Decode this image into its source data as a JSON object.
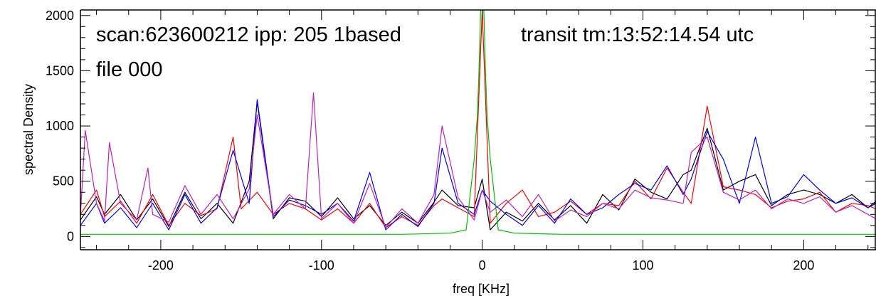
{
  "chart_data": {
    "type": "line",
    "title": "",
    "xlabel": "freq [KHz]",
    "ylabel": "spectral Density",
    "xlim": [
      -250,
      245
    ],
    "ylim": [
      -120,
      2050
    ],
    "xticks": [
      -200,
      -100,
      0,
      100,
      200
    ],
    "yticks": [
      0,
      500,
      1000,
      1500,
      2000
    ],
    "grid": false,
    "annotations": {
      "scan": "scan:623600212 ipp: 205 1based",
      "transit": "transit tm:13:52:14.54 utc",
      "file": "file 000"
    },
    "colors": {
      "black": "#000000",
      "red": "#ff0000",
      "blue": "#0000ff",
      "magenta": "#c020c0",
      "green": "#00c000"
    },
    "series": [
      {
        "color": "black",
        "x": [
          -250,
          -240,
          -235,
          -225,
          -215,
          -205,
          -195,
          -185,
          -175,
          -165,
          -155,
          -145,
          -140,
          -130,
          -120,
          -110,
          -100,
          -90,
          -80,
          -70,
          -60,
          -50,
          -40,
          -30,
          -25,
          -15,
          -5,
          0,
          5,
          15,
          25,
          35,
          45,
          55,
          65,
          75,
          85,
          95,
          105,
          115,
          125,
          130,
          140,
          150,
          160,
          170,
          180,
          190,
          200,
          210,
          220,
          230,
          240,
          245
        ],
        "y": [
          150,
          360,
          200,
          380,
          150,
          340,
          90,
          400,
          160,
          300,
          120,
          500,
          1220,
          160,
          350,
          320,
          180,
          350,
          160,
          280,
          100,
          220,
          120,
          310,
          420,
          280,
          260,
          520,
          60,
          220,
          140,
          300,
          150,
          280,
          120,
          380,
          240,
          520,
          400,
          340,
          560,
          600,
          980,
          420,
          500,
          560,
          280,
          380,
          420,
          380,
          300,
          380,
          260,
          320
        ]
      },
      {
        "color": "red",
        "x": [
          -250,
          -240,
          -235,
          -225,
          -215,
          -205,
          -195,
          -185,
          -175,
          -165,
          -155,
          -150,
          -140,
          -130,
          -120,
          -110,
          -100,
          -90,
          -80,
          -70,
          -60,
          -50,
          -40,
          -30,
          -25,
          -15,
          -5,
          0,
          5,
          15,
          25,
          35,
          45,
          55,
          65,
          75,
          85,
          95,
          105,
          115,
          125,
          130,
          140,
          150,
          160,
          170,
          180,
          190,
          200,
          210,
          220,
          230,
          240,
          245
        ],
        "y": [
          200,
          420,
          180,
          320,
          120,
          380,
          100,
          300,
          190,
          250,
          900,
          250,
          400,
          200,
          300,
          250,
          150,
          250,
          120,
          300,
          80,
          180,
          100,
          280,
          340,
          260,
          180,
          2050,
          120,
          300,
          420,
          180,
          220,
          320,
          200,
          300,
          280,
          500,
          340,
          620,
          400,
          300,
          1180,
          450,
          420,
          380,
          260,
          320,
          340,
          400,
          220,
          300,
          280,
          250
        ]
      },
      {
        "color": "blue",
        "x": [
          -250,
          -240,
          -235,
          -225,
          -215,
          -205,
          -195,
          -185,
          -175,
          -165,
          -155,
          -145,
          -140,
          -130,
          -120,
          -110,
          -100,
          -90,
          -80,
          -70,
          -60,
          -50,
          -40,
          -30,
          -25,
          -15,
          -5,
          0,
          5,
          15,
          25,
          35,
          45,
          55,
          65,
          75,
          85,
          95,
          105,
          115,
          125,
          130,
          140,
          150,
          160,
          170,
          180,
          190,
          200,
          210,
          220,
          230,
          240,
          245
        ],
        "y": [
          100,
          300,
          120,
          260,
          80,
          300,
          60,
          380,
          120,
          260,
          780,
          300,
          1240,
          180,
          330,
          280,
          200,
          300,
          140,
          580,
          60,
          200,
          90,
          300,
          800,
          300,
          200,
          420,
          320,
          200,
          100,
          280,
          120,
          340,
          200,
          260,
          380,
          480,
          420,
          640,
          380,
          520,
          950,
          700,
          300,
          900,
          300,
          360,
          560,
          420,
          300,
          350,
          260,
          300
        ]
      },
      {
        "color": "magenta",
        "x": [
          -250,
          -247,
          -240,
          -235,
          -232,
          -225,
          -215,
          -208,
          -205,
          -195,
          -185,
          -175,
          -165,
          -155,
          -145,
          -140,
          -130,
          -120,
          -110,
          -105,
          -100,
          -90,
          -80,
          -70,
          -60,
          -50,
          -40,
          -30,
          -25,
          -15,
          -5,
          0,
          5,
          15,
          25,
          35,
          45,
          55,
          65,
          75,
          85,
          95,
          105,
          115,
          125,
          130,
          140,
          150,
          160,
          170,
          180,
          190,
          200,
          210,
          220,
          230,
          240,
          245
        ],
        "y": [
          180,
          960,
          300,
          140,
          850,
          300,
          150,
          620,
          200,
          130,
          460,
          200,
          380,
          160,
          430,
          1100,
          200,
          380,
          250,
          1300,
          160,
          300,
          120,
          480,
          80,
          250,
          120,
          380,
          1000,
          350,
          150,
          420,
          220,
          330,
          180,
          380,
          140,
          240,
          180,
          300,
          250,
          420,
          350,
          330,
          300,
          760,
          900,
          400,
          330,
          420,
          250,
          340,
          300,
          360,
          220,
          280,
          200,
          160
        ]
      },
      {
        "color": "green",
        "x": [
          -250,
          -200,
          -150,
          -100,
          -50,
          -20,
          -10,
          -5,
          -3,
          -2,
          -1,
          0,
          1,
          2,
          3,
          5,
          10,
          20,
          50,
          100,
          150,
          200,
          245
        ],
        "y": [
          20,
          20,
          20,
          20,
          20,
          30,
          60,
          700,
          1100,
          1500,
          2050,
          2050,
          2050,
          1500,
          1100,
          700,
          60,
          30,
          20,
          20,
          20,
          20,
          20
        ]
      }
    ]
  }
}
